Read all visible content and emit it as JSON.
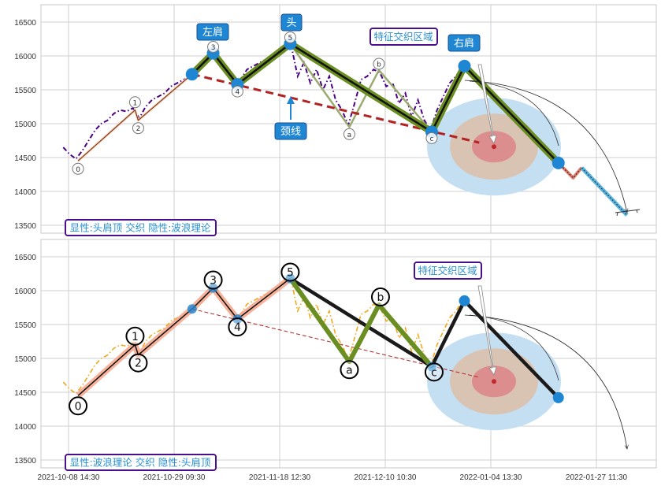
{
  "chart_data": {
    "type": "line",
    "title": "",
    "xlabel": "",
    "ylabel": "",
    "ylim": [
      13400,
      16750
    ],
    "xlim": [
      -26,
      557
    ],
    "x_unit": "bar index (30-min bars)",
    "x_ticks": [
      {
        "x": 0,
        "label": "2021-10-08 14:30"
      },
      {
        "x": 100,
        "label": "2021-10-29 09:30"
      },
      {
        "x": 200,
        "label": "2021-11-18 12:30"
      },
      {
        "x": 300,
        "label": "2021-12-10 10:30"
      },
      {
        "x": 400,
        "label": "2022-01-04 13:30"
      },
      {
        "x": 500,
        "label": "2022-01-27 11:30"
      }
    ],
    "y_ticks": [
      13500,
      14000,
      14500,
      15000,
      15500,
      16000,
      16500
    ],
    "grid": true,
    "price_series": {
      "start_x": -5,
      "step": 6,
      "values": [
        14650,
        14550,
        14480,
        14600,
        14750,
        14900,
        15000,
        15050,
        15150,
        15200,
        15180,
        15230,
        15080,
        15250,
        15350,
        15400,
        15450,
        15550,
        15600,
        15650,
        15680,
        15720,
        15850,
        15980,
        16050,
        15900,
        15750,
        15600,
        15650,
        15800,
        15850,
        15900,
        15950,
        16000,
        16050,
        16150,
        16150,
        15700,
        15900,
        15600,
        15800,
        15500,
        15700,
        15350,
        15200,
        14980,
        15300,
        15650,
        15700,
        15800,
        15750,
        15550,
        15600,
        15300,
        15450,
        15100,
        15350,
        15050,
        14900,
        15200,
        15400,
        15600,
        15700,
        15850
      ]
    },
    "pivots": {
      "w0": {
        "x": 9,
        "y": 14450,
        "label": "0"
      },
      "w1": {
        "x": 63,
        "y": 15200,
        "label": "1"
      },
      "w2": {
        "x": 66,
        "y": 15050,
        "label": "2"
      },
      "ls0": {
        "x": 117,
        "y": 15730
      },
      "w3": {
        "x": 137,
        "y": 16040,
        "label": "3"
      },
      "w4": {
        "x": 160,
        "y": 15580,
        "label": "4"
      },
      "w5": {
        "x": 210,
        "y": 16180,
        "label": "5"
      },
      "wa": {
        "x": 266,
        "y": 14950,
        "label": "a"
      },
      "wb": {
        "x": 294,
        "y": 15790,
        "label": "b"
      },
      "wc": {
        "x": 344,
        "y": 14880,
        "label": "c"
      },
      "rs": {
        "x": 375,
        "y": 15850
      },
      "t1": {
        "x": 464,
        "y": 14420
      },
      "z1": {
        "x": 478,
        "y": 14200
      },
      "z2": {
        "x": 486,
        "y": 14350
      },
      "z3": {
        "x": 529,
        "y": 13650
      }
    },
    "neckline": [
      {
        "x": 117,
        "y": 15730
      },
      {
        "x": 389,
        "y": 14720
      }
    ],
    "target_zone_center": {
      "x": 403,
      "y": 14660
    },
    "panels": [
      {
        "name": "top",
        "series_color": "#4b0082",
        "labels": {
          "left_shoulder": "左肩",
          "head": "头",
          "right_shoulder": "右肩",
          "neckline": "颈线",
          "zone": "特征交织区域",
          "caption": "显性:头肩顶 交织 隐性:波浪理论"
        }
      },
      {
        "name": "bottom",
        "series_color": "#f0a81e",
        "labels": {
          "zone": "特征交织区域",
          "caption": "显性:波浪理论 交织 隐性:头肩顶"
        }
      }
    ],
    "colors": {
      "accent_blue": "#1f86d4",
      "olive": "#6b8e23",
      "neckline": "#b22222",
      "box_border": "#4b0f8c",
      "salmon": "#f4a58a"
    }
  }
}
